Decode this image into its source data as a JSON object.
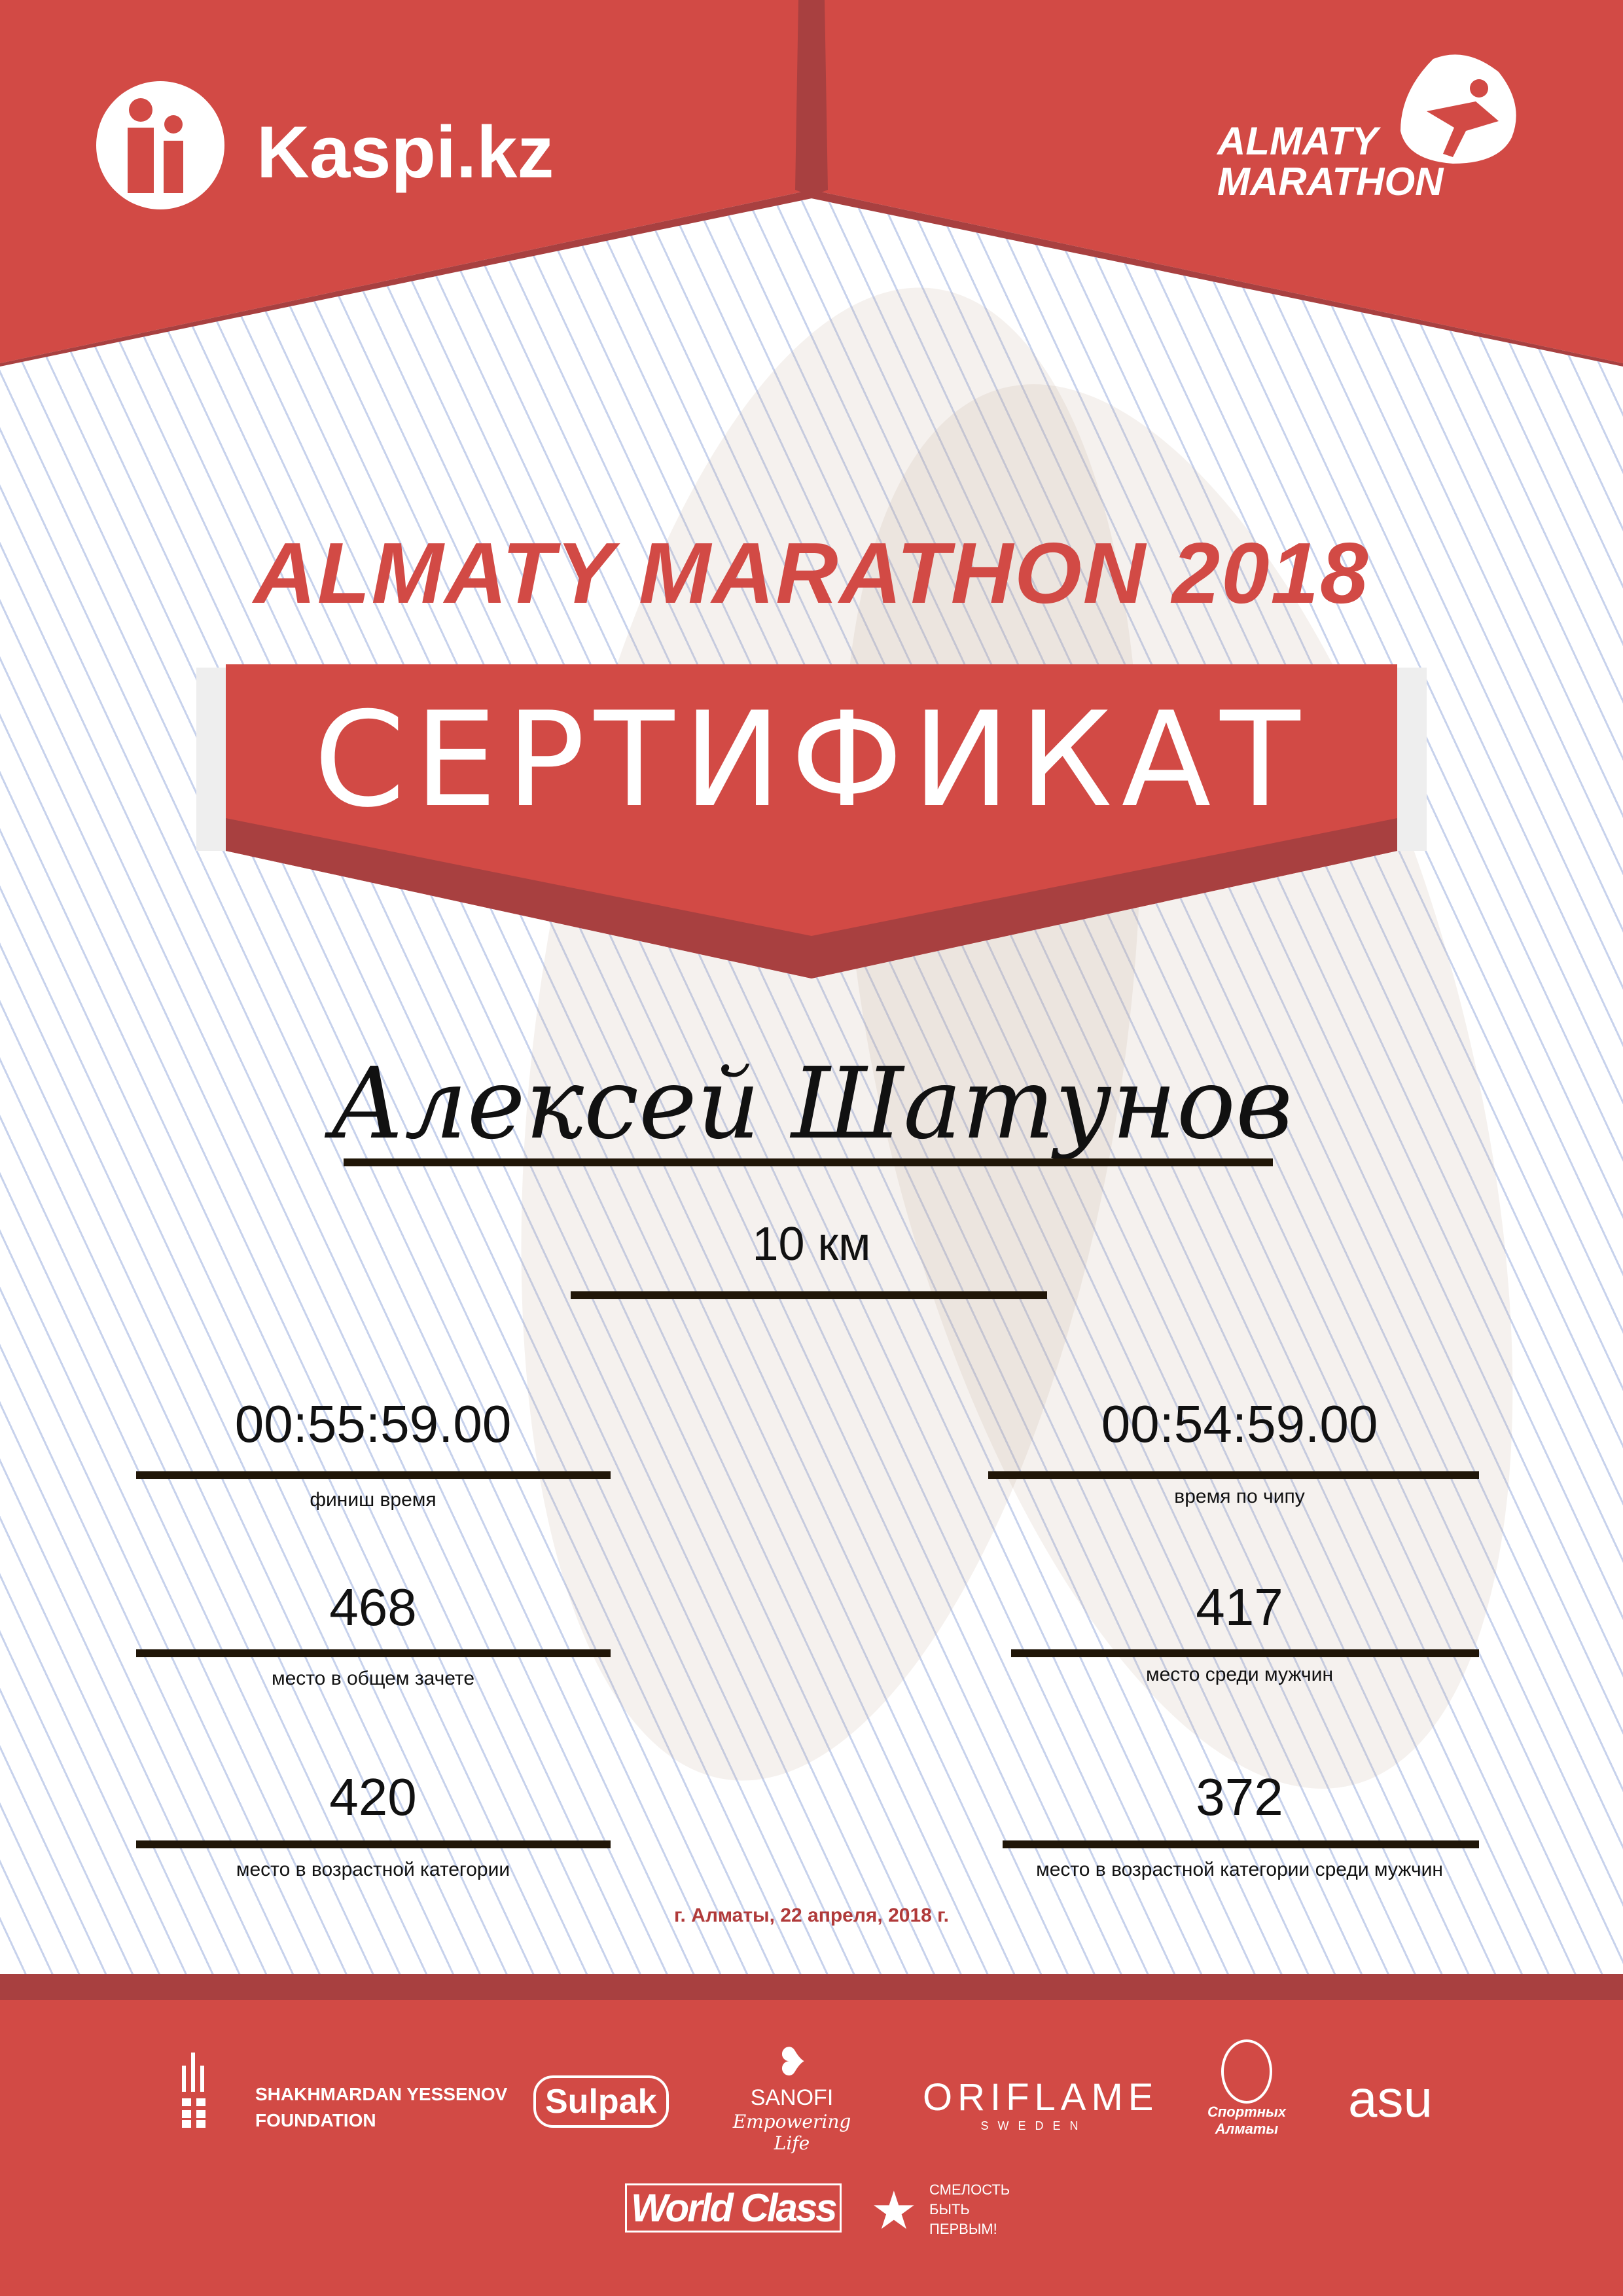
{
  "header": {
    "left_logo": "Kaspi.kz",
    "right_logo": [
      "ALMATY",
      "MARATHON"
    ]
  },
  "event_title": "ALMATY MARATHON 2018",
  "certificate_label": "СЕРТИФИКАТ",
  "participant_name": "Алексей Шатунов",
  "distance": "10 км",
  "results": {
    "finish_time": {
      "value": "00:55:59.00",
      "label": "финиш время"
    },
    "chip_time": {
      "value": "00:54:59.00",
      "label": "время по чипу"
    },
    "overall_place": {
      "value": "468",
      "label": "место в общем зачете"
    },
    "male_place": {
      "value": "417",
      "label": "место среди мужчин"
    },
    "age_place": {
      "value": "420",
      "label": "место в возрастной категории"
    },
    "age_male_place": {
      "value": "372",
      "label": "место в возрастной категории среди мужчин"
    }
  },
  "date_line": "г. Алматы, 22 апреля, 2018 г.",
  "sponsors": {
    "yessenov": [
      "SHAKHMARDAN YESSENOV",
      "FOUNDATION"
    ],
    "sulpak": "Sulpak",
    "sanofi": [
      "SANOFI",
      "Empowering Life"
    ],
    "oriflame": [
      "ORIFLAME",
      "SWEDEN"
    ],
    "sport_almaty": [
      "Спортных",
      "Алматы"
    ],
    "asu": "asu",
    "world_class": "World Class",
    "smelost": [
      "СМЕЛОСТЬ",
      "БЫТЬ",
      "ПЕРВЫМ!"
    ]
  },
  "colors": {
    "brand_red": "#d24a45",
    "dark_red": "#a84040",
    "stripe_blue": "#c7d2ec",
    "rule": "#201608"
  }
}
